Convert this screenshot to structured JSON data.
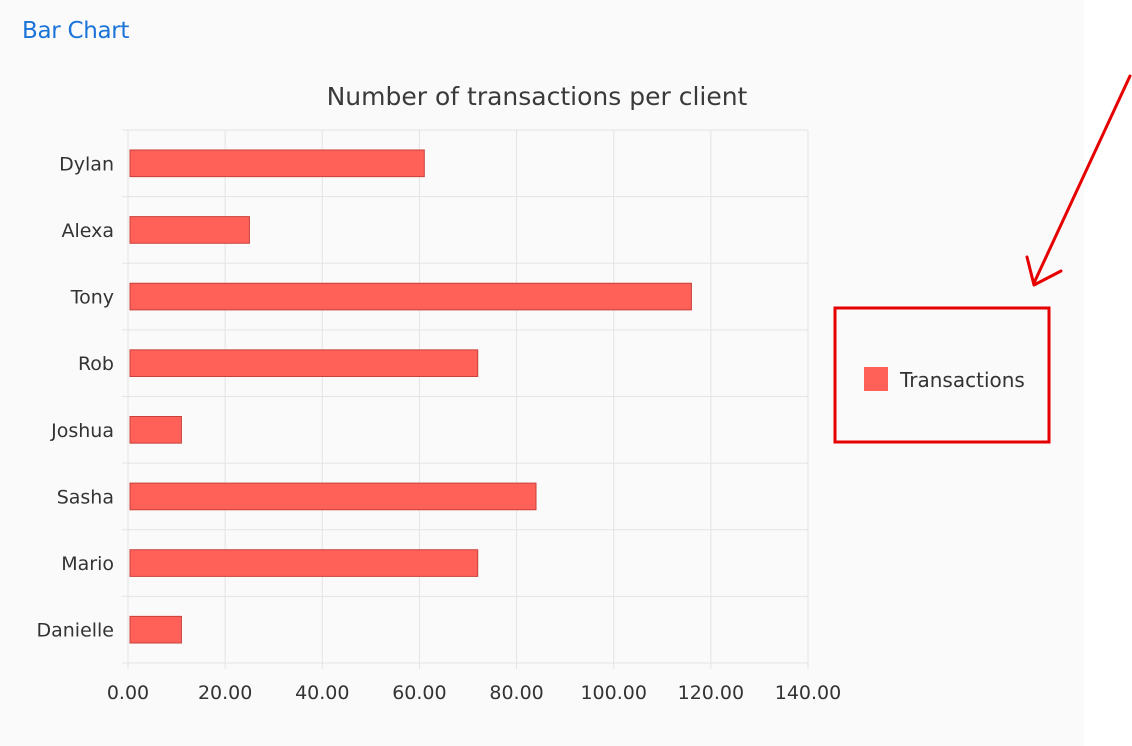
{
  "page": {
    "link_label": "Bar Chart"
  },
  "colors": {
    "bar_fill": "#ff6159",
    "bar_stroke": "#c8403a",
    "grid": "#e4e4e4",
    "annotation": "#e60000",
    "link": "#1a73d9"
  },
  "chart_data": {
    "type": "bar",
    "orientation": "horizontal",
    "title": "Number of transactions per client",
    "xlabel": "",
    "ylabel": "",
    "categories": [
      "Dylan",
      "Alexa",
      "Tony",
      "Rob",
      "Joshua",
      "Sasha",
      "Mario",
      "Danielle"
    ],
    "series": [
      {
        "name": "Transactions",
        "values": [
          61,
          25,
          116,
          72,
          11,
          84,
          72,
          11
        ]
      }
    ],
    "xlim": [
      0,
      140
    ],
    "xticks": [
      "0.00",
      "20.00",
      "40.00",
      "60.00",
      "80.00",
      "100.00",
      "120.00",
      "140.00"
    ],
    "grid": true,
    "legend": "right"
  },
  "annotation": {
    "type": "red arrow pointing to highlighted legend box"
  }
}
